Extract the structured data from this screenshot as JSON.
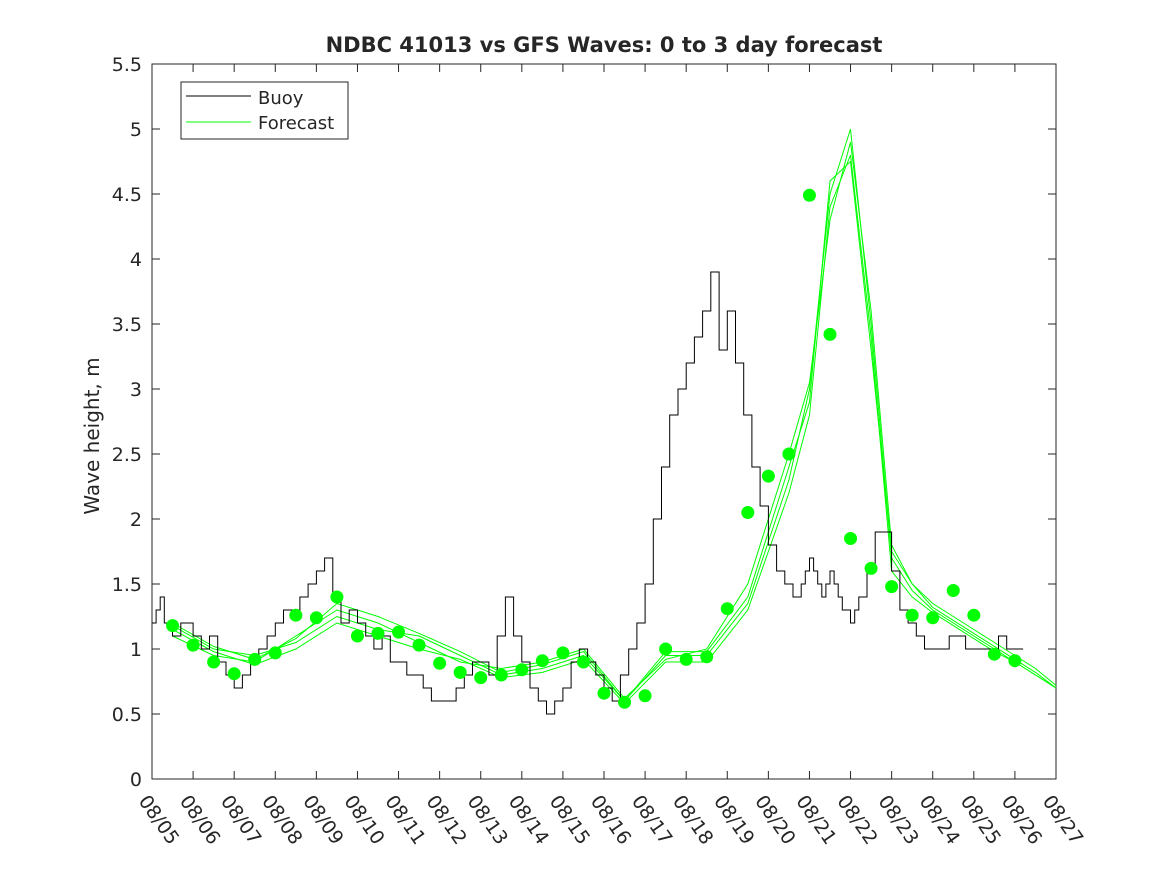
{
  "chart_data": {
    "type": "line",
    "title": "NDBC 41013 vs GFS Waves: 0 to 3 day forecast",
    "xlabel": "",
    "ylabel": "Wave height, m",
    "xlim": [
      0,
      22
    ],
    "ylim": [
      0,
      5.5
    ],
    "grid": false,
    "legend_position": "top-left",
    "x_tick_labels": [
      "08/05",
      "08/06",
      "08/07",
      "08/08",
      "08/09",
      "08/10",
      "08/11",
      "08/12",
      "08/13",
      "08/14",
      "08/15",
      "08/16",
      "08/17",
      "08/18",
      "08/19",
      "08/20",
      "08/21",
      "08/22",
      "08/23",
      "08/24",
      "08/25",
      "08/26",
      "08/27"
    ],
    "y_ticks": [
      0,
      0.5,
      1,
      1.5,
      2,
      2.5,
      3,
      3.5,
      4,
      4.5,
      5,
      5.5
    ],
    "y_tick_labels": [
      "0",
      "0.5",
      "1",
      "1.5",
      "2",
      "2.5",
      "3",
      "3.5",
      "4",
      "4.5",
      "5",
      "5.5"
    ],
    "colors": {
      "buoy": "#000000",
      "forecast": "#00ff00",
      "axis": "#262626"
    },
    "series": [
      {
        "name": "Buoy",
        "color": "#000000",
        "x": [
          0,
          0.1,
          0.2,
          0.3,
          0.5,
          0.7,
          1.0,
          1.2,
          1.4,
          1.6,
          1.8,
          2.0,
          2.2,
          2.4,
          2.6,
          2.8,
          3.0,
          3.2,
          3.4,
          3.6,
          3.8,
          4.0,
          4.2,
          4.4,
          4.6,
          4.8,
          5.0,
          5.2,
          5.4,
          5.6,
          5.8,
          6.0,
          6.2,
          6.4,
          6.6,
          6.8,
          7.0,
          7.2,
          7.4,
          7.6,
          7.8,
          8.0,
          8.2,
          8.4,
          8.6,
          8.8,
          9.0,
          9.2,
          9.4,
          9.6,
          9.8,
          10.0,
          10.2,
          10.4,
          10.6,
          10.8,
          11.0,
          11.2,
          11.4,
          11.6,
          11.8,
          12.0,
          12.2,
          12.4,
          12.6,
          12.8,
          13.0,
          13.2,
          13.4,
          13.6,
          13.8,
          14.0,
          14.2,
          14.4,
          14.6,
          14.8,
          15.0,
          15.2,
          15.4,
          15.6,
          15.8,
          15.9,
          16.0,
          16.1,
          16.2,
          16.3,
          16.4,
          16.5,
          16.6,
          16.7,
          16.8,
          16.9,
          17.0,
          17.1,
          17.2,
          17.4,
          17.6,
          17.8,
          18.0,
          18.2,
          18.4,
          18.6,
          18.8,
          19.0,
          19.2,
          19.4,
          19.6,
          19.8,
          20.0,
          20.2,
          20.4,
          20.6,
          20.8,
          21.0,
          21.2
        ],
        "values": [
          1.2,
          1.3,
          1.4,
          1.2,
          1.1,
          1.2,
          1.1,
          1.0,
          1.1,
          0.9,
          0.8,
          0.7,
          0.8,
          0.9,
          1.0,
          1.1,
          1.2,
          1.3,
          1.3,
          1.4,
          1.5,
          1.6,
          1.7,
          1.4,
          1.2,
          1.3,
          1.2,
          1.1,
          1.0,
          1.1,
          0.9,
          0.9,
          0.8,
          0.8,
          0.7,
          0.6,
          0.6,
          0.6,
          0.7,
          0.8,
          0.9,
          0.9,
          0.8,
          1.1,
          1.4,
          1.1,
          0.9,
          0.7,
          0.6,
          0.5,
          0.6,
          0.7,
          0.9,
          1.0,
          0.9,
          0.8,
          0.7,
          0.6,
          0.8,
          1.0,
          1.2,
          1.5,
          2.0,
          2.4,
          2.8,
          3.0,
          3.2,
          3.4,
          3.6,
          3.9,
          3.3,
          3.6,
          3.2,
          2.8,
          2.4,
          2.1,
          1.8,
          1.6,
          1.5,
          1.4,
          1.5,
          1.6,
          1.7,
          1.6,
          1.5,
          1.4,
          1.5,
          1.6,
          1.5,
          1.4,
          1.3,
          1.3,
          1.2,
          1.3,
          1.4,
          1.6,
          1.9,
          1.9,
          1.6,
          1.3,
          1.2,
          1.1,
          1.0,
          1.0,
          1.0,
          1.1,
          1.1,
          1.0,
          1.0,
          1.0,
          1.0,
          1.1,
          1.0,
          1.0,
          1.0
        ]
      },
      {
        "name": "Forecast",
        "color": "#00ff00",
        "runs": [
          {
            "x": [
              0.5,
              1.5,
              2.5,
              3.5,
              4.5,
              5.5,
              6.5,
              7.5,
              8.5,
              9.5,
              10.5,
              11.5,
              12.5,
              13.5,
              14.5,
              15.5,
              16.0,
              16.5,
              17.0,
              17.5,
              18.0,
              18.5,
              19.0,
              19.5,
              20.0,
              20.5,
              21.0,
              21.5,
              22.0
            ],
            "values": [
              1.18,
              1.0,
              0.95,
              1.05,
              1.25,
              1.15,
              1.1,
              0.95,
              0.8,
              0.85,
              0.95,
              0.6,
              0.95,
              0.95,
              1.35,
              2.3,
              3.0,
              4.5,
              5.0,
              3.5,
              1.7,
              1.45,
              1.3,
              1.2,
              1.1,
              1.0,
              0.9,
              0.8,
              0.7
            ]
          },
          {
            "x": [
              0.5,
              1.5,
              2.5,
              3.5,
              4.5,
              5.5,
              6.5,
              7.5,
              8.5,
              9.5,
              10.5,
              11.5,
              12.5,
              13.5,
              14.5,
              15.5,
              16.0,
              16.5,
              17.0,
              17.5,
              18.0,
              18.5,
              19.0,
              19.5,
              20.0,
              20.5,
              21.0,
              21.5,
              22.0
            ],
            "values": [
              1.1,
              0.95,
              0.9,
              1.1,
              1.3,
              1.2,
              1.05,
              0.9,
              0.85,
              0.9,
              1.0,
              0.62,
              0.92,
              1.0,
              1.5,
              2.5,
              3.05,
              4.3,
              4.9,
              3.6,
              1.8,
              1.5,
              1.35,
              1.25,
              1.15,
              1.05,
              0.95,
              0.85,
              0.72
            ]
          },
          {
            "x": [
              0.5,
              1.5,
              2.5,
              3.5,
              4.5,
              5.5,
              6.5,
              7.5,
              8.5,
              9.5,
              10.5,
              11.5,
              12.5,
              13.5,
              14.5,
              15.5,
              16.0,
              16.5,
              17.0,
              17.5,
              18.0,
              18.5,
              19.0,
              19.5,
              20.0,
              20.5,
              21.0,
              21.5,
              22.0
            ],
            "values": [
              1.15,
              0.98,
              0.88,
              1.0,
              1.2,
              1.1,
              1.0,
              0.92,
              0.78,
              0.82,
              0.92,
              0.58,
              0.9,
              0.9,
              1.3,
              2.2,
              2.8,
              4.4,
              4.8,
              3.4,
              1.6,
              1.4,
              1.28,
              1.18,
              1.08,
              0.98,
              0.9,
              0.8,
              0.7
            ]
          },
          {
            "x": [
              0.5,
              1.5,
              2.5,
              3.5,
              4.5,
              5.5,
              6.5,
              7.5,
              8.5,
              9.5,
              10.5,
              11.5,
              12.5,
              13.5,
              14.5,
              15.5,
              16.0,
              16.5,
              17.0,
              17.5,
              18.0,
              18.5,
              19.0,
              19.5,
              20.0,
              20.5,
              21.0,
              21.5,
              22.0
            ],
            "values": [
              1.2,
              1.02,
              0.92,
              1.08,
              1.35,
              1.25,
              1.12,
              0.98,
              0.82,
              0.88,
              0.98,
              0.6,
              0.98,
              0.98,
              1.4,
              2.4,
              2.9,
              4.6,
              4.75,
              3.3,
              1.75,
              1.5,
              1.32,
              1.22,
              1.12,
              1.02,
              0.92,
              0.82,
              0.7
            ]
          }
        ]
      }
    ],
    "markers": {
      "name": "Forecast 0-hr",
      "color": "#00ff00",
      "x": [
        0.5,
        1.0,
        1.5,
        2.0,
        2.5,
        3.0,
        3.5,
        4.0,
        4.5,
        5.0,
        5.5,
        6.0,
        6.5,
        7.0,
        7.5,
        8.0,
        8.5,
        9.0,
        9.5,
        10.0,
        10.5,
        11.0,
        11.5,
        12.0,
        12.5,
        13.0,
        13.5,
        14.0,
        14.5,
        15.0,
        15.5,
        16.0,
        16.5,
        17.0,
        17.5,
        18.0,
        18.5,
        19.0,
        19.5,
        20.0,
        20.5,
        21.0
      ],
      "values": [
        1.18,
        1.03,
        0.9,
        0.81,
        0.92,
        0.97,
        1.26,
        1.24,
        1.4,
        1.1,
        1.12,
        1.13,
        1.03,
        0.89,
        0.82,
        0.78,
        0.8,
        0.84,
        0.91,
        0.97,
        0.9,
        0.66,
        0.59,
        0.64,
        1.0,
        0.92,
        0.94,
        1.31,
        2.05,
        2.33,
        2.5,
        4.49,
        3.42,
        1.85,
        1.62,
        1.48,
        1.26,
        1.24,
        1.45,
        1.26,
        0.96,
        0.91
      ]
    },
    "legend": [
      {
        "label": "Buoy",
        "color": "#000000"
      },
      {
        "label": "Forecast",
        "color": "#00ff00"
      }
    ]
  }
}
